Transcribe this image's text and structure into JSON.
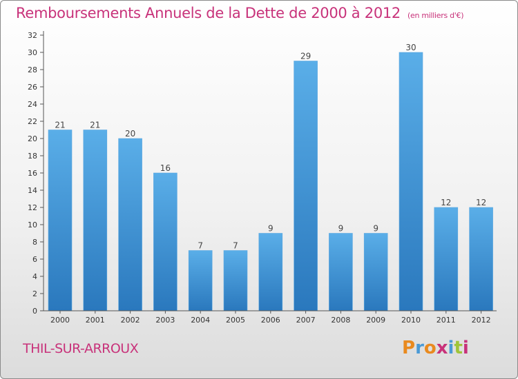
{
  "header": {
    "title": "Remboursements Annuels de la Dette de 2000 à 2012",
    "units": "(en milliers d'€)"
  },
  "footer": {
    "commune": "THIL-SUR-ARROUX",
    "logo_text": "Proxiti"
  },
  "colors": {
    "title": "#c8327a",
    "bar_top": "#5aaee8",
    "bar_bottom": "#2a78bd",
    "logo_letters": [
      "#e98a1f",
      "#4a9ad6",
      "#e98a1f",
      "#c8327a",
      "#4a9ad6",
      "#9fc43a",
      "#c8327a"
    ]
  },
  "chart_data": {
    "type": "bar",
    "title": "Remboursements Annuels de la Dette de 2000 à 2012",
    "categories": [
      "2000",
      "2001",
      "2002",
      "2003",
      "2004",
      "2005",
      "2006",
      "2007",
      "2008",
      "2009",
      "2010",
      "2011",
      "2012"
    ],
    "values": [
      21,
      21,
      20,
      16,
      7,
      7,
      9,
      29,
      9,
      9,
      30,
      12,
      12
    ],
    "ylim": [
      0,
      32
    ],
    "yticks": [
      0,
      2,
      4,
      6,
      8,
      10,
      12,
      14,
      16,
      18,
      20,
      22,
      24,
      26,
      28,
      30,
      32
    ],
    "grid": false,
    "data_labels": true
  }
}
